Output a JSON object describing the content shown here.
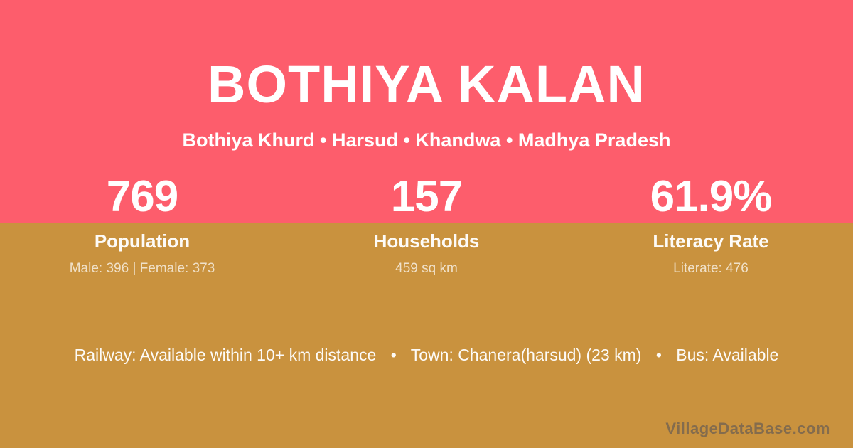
{
  "colors": {
    "top_band": "#FD5D6C",
    "bottom_band": "#C9923E",
    "text_primary": "#FFFFFF",
    "watermark": "#6B6D78"
  },
  "header": {
    "title": "BOTHIYA KALAN",
    "subtitle": "Bothiya Khurd • Harsud • Khandwa • Madhya Pradesh"
  },
  "stats": [
    {
      "value": "769",
      "label": "Population",
      "detail": "Male: 396 | Female: 373"
    },
    {
      "value": "157",
      "label": "Households",
      "detail": "459 sq km"
    },
    {
      "value": "61.9%",
      "label": "Literacy Rate",
      "detail": "Literate: 476"
    }
  ],
  "footer": {
    "separator": "•",
    "segments": [
      "Railway: Available within 10+ km distance",
      "Town: Chanera(harsud) (23 km)",
      "Bus: Available"
    ],
    "watermark": "VillageDataBase.com"
  }
}
